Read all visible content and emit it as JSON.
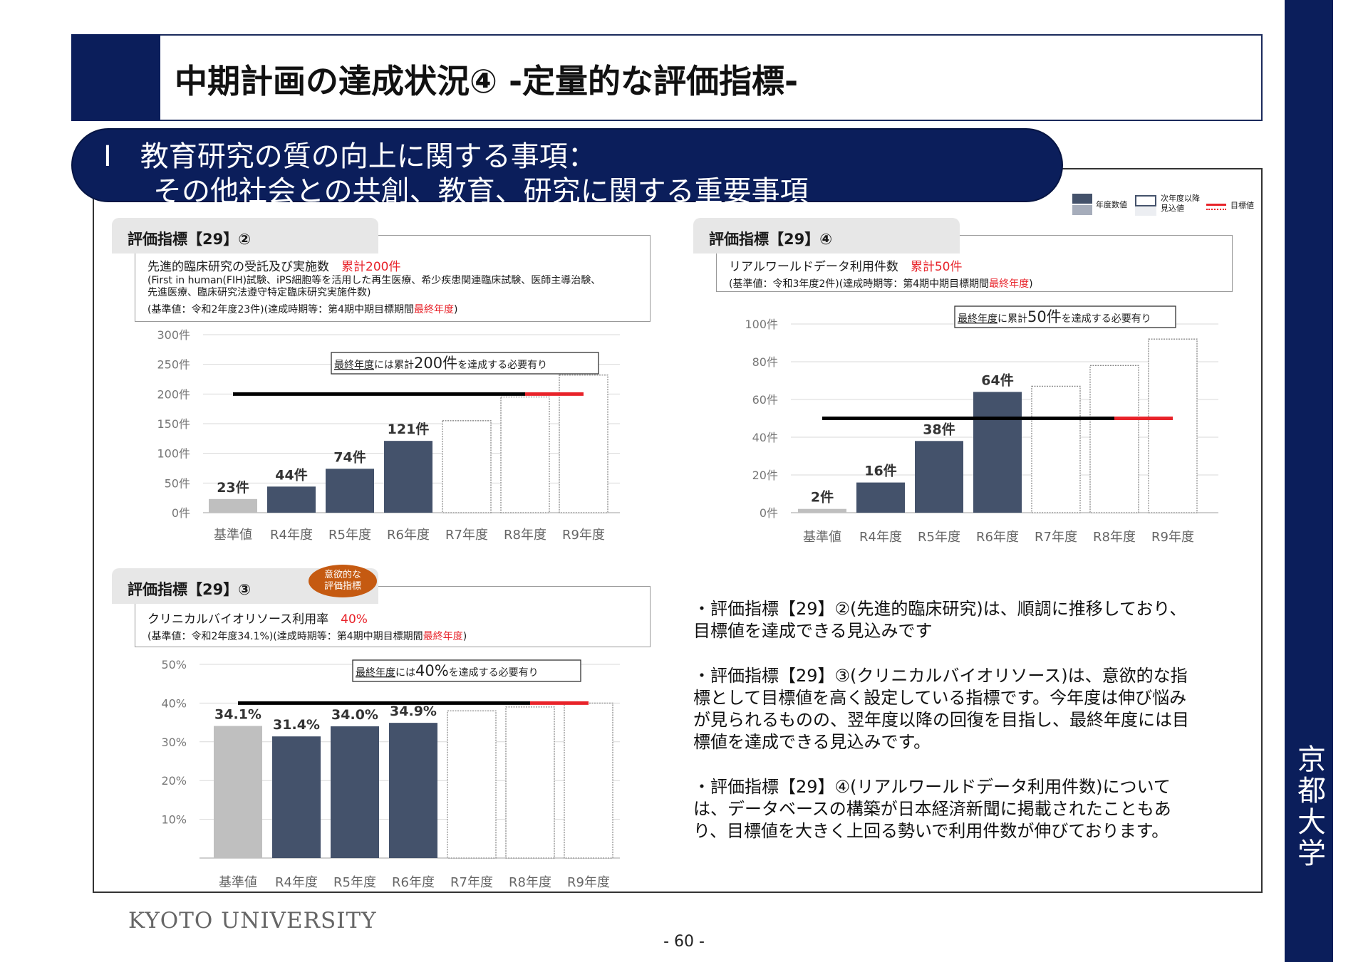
{
  "header": {
    "title": "中期計画の達成状況④ -定量的な評価指標-"
  },
  "sidebar": {
    "label": "京都大学"
  },
  "section": {
    "line1": "Ⅰ　教育研究の質の向上に関する事項：",
    "line2": "その他社会との共創、教育、研究に関する重要事項"
  },
  "legend": {
    "actual": "年度数値",
    "forecast_line1": "次年度以降",
    "forecast_line2": "見込値",
    "target": "目標値"
  },
  "colors": {
    "navy": "#0b1e5b",
    "bar_dark": "#44526b",
    "bar_base": "#bfbfbf",
    "goal_red": "#e8232a",
    "badge": "#c55a11"
  },
  "indicators": [
    {
      "tab": "評価指標【29】②",
      "desc": "先進的臨床研究の受託及び実施数",
      "target_text": "累計200件",
      "note": "(First in human(FIH)試験、iPS細胞等を活用した再生医療、希少疾患関連臨床試験、医師主導治験、",
      "note2": "先進医療、臨床研究法遵守特定臨床研究実施件数)",
      "basis_pre": "(基準値：令和2年度23件)(達成時期等：第4期中期目標期間",
      "basis_red": "最終年度",
      "basis_post": ")",
      "callout_pre": "最終年度には累計",
      "callout_big": "200件",
      "callout_post": "を達成する必要有り"
    },
    {
      "tab": "評価指標【29】③",
      "badge": "意欲的な\n評価指標",
      "badge_line1": "意欲的な",
      "badge_line2": "評価指標",
      "desc": "クリニカルバイオリソース利用率",
      "target_text": "40%",
      "basis_pre": "(基準値：令和2年度34.1%)(達成時期等：第4期中期目標期間",
      "basis_red": "最終年度",
      "basis_post": ")",
      "callout_pre": "最終年度には",
      "callout_big": "40%",
      "callout_post": "を達成する必要有り"
    },
    {
      "tab": "評価指標【29】④",
      "desc": "リアルワールドデータ利用件数",
      "target_text": "累計50件",
      "basis_pre": "(基準値：令和3年度2件)(達成時期等：第4期中期目標期間",
      "basis_red": "最終年度",
      "basis_post": ")",
      "callout_pre": "最終年度に累計",
      "callout_big": "50件",
      "callout_post": "を達成する必要有り"
    }
  ],
  "chart_data": [
    {
      "type": "bar",
      "categories": [
        "基準値",
        "R4年度",
        "R5年度",
        "R6年度",
        "R7年度",
        "R8年度",
        "R9年度"
      ],
      "values": [
        23,
        44,
        74,
        121,
        null,
        null,
        null
      ],
      "data_labels": [
        "23件",
        "44件",
        "74件",
        "121件",
        "",
        "",
        ""
      ],
      "forecast": [
        null,
        null,
        null,
        null,
        155,
        195,
        232
      ],
      "target": 200,
      "ylim": [
        0,
        300
      ],
      "yticks": [
        0,
        50,
        100,
        150,
        200,
        250,
        300
      ],
      "ytick_labels": [
        "0件",
        "50件",
        "100件",
        "150件",
        "200件",
        "250件",
        "300件"
      ]
    },
    {
      "type": "bar",
      "categories": [
        "基準値",
        "R4年度",
        "R5年度",
        "R6年度",
        "R7年度",
        "R8年度",
        "R9年度"
      ],
      "values": [
        34.1,
        31.4,
        34.0,
        34.9,
        null,
        null,
        null
      ],
      "data_labels": [
        "34.1%",
        "31.4%",
        "34.0%",
        "34.9%",
        "",
        "",
        ""
      ],
      "forecast": [
        null,
        null,
        null,
        null,
        38,
        39,
        40
      ],
      "target": 40,
      "ylim": [
        0,
        50
      ],
      "yticks": [
        10,
        20,
        30,
        40,
        50
      ],
      "ytick_labels": [
        "10%",
        "20%",
        "30%",
        "40%",
        "50%"
      ]
    },
    {
      "type": "bar",
      "categories": [
        "基準値",
        "R4年度",
        "R5年度",
        "R6年度",
        "R7年度",
        "R8年度",
        "R9年度"
      ],
      "values": [
        2,
        16,
        38,
        64,
        null,
        null,
        null
      ],
      "data_labels": [
        "2件",
        "16件",
        "38件",
        "64件",
        "",
        "",
        ""
      ],
      "forecast": [
        null,
        null,
        null,
        null,
        67,
        78,
        92
      ],
      "target": 50,
      "ylim": [
        0,
        100
      ],
      "yticks": [
        0,
        20,
        40,
        60,
        80,
        100
      ],
      "ytick_labels": [
        "0件",
        "20件",
        "40件",
        "60件",
        "80件",
        "100件"
      ]
    }
  ],
  "comments": [
    "・評価指標【29】②(先進的臨床研究)は、順調に推移しており、目標値を達成できる見込みです",
    "・評価指標【29】③(クリニカルバイオリソース)は、意欲的な指標として目標値を高く設定している指標です。今年度は伸び悩みが見られるものの、翌年度以降の回復を目指し、最終年度には目標値を達成できる見込みです。",
    "・評価指標【29】④(リアルワールドデータ利用件数)については、データベースの構築が日本経済新聞に掲載されたこともあり、目標値を大きく上回る勢いで利用件数が伸びております。"
  ],
  "footer": {
    "university": "KYOTO UNIVERSITY",
    "page": "- 60 -"
  }
}
